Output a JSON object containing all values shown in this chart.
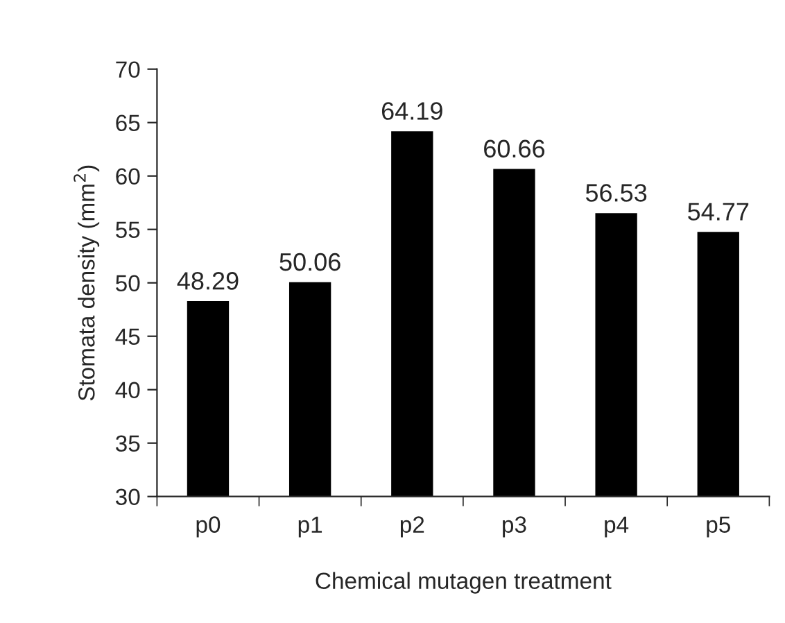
{
  "chart_data": {
    "type": "bar",
    "xlabel": "Chemical mutagen treatment",
    "ylabel": "Stomata density (mm$^{2}$)",
    "categories": [
      "p0",
      "p1",
      "p2",
      "p3",
      "p4",
      "p5"
    ],
    "values": [
      48.29,
      50.06,
      64.19,
      60.66,
      56.53,
      54.77
    ],
    "color": "#000000",
    "ylim": [
      30,
      70
    ],
    "yticks": [
      30,
      35,
      40,
      45,
      50,
      55,
      60,
      65,
      70
    ],
    "data_labels": true,
    "grid": false,
    "legend": false
  }
}
